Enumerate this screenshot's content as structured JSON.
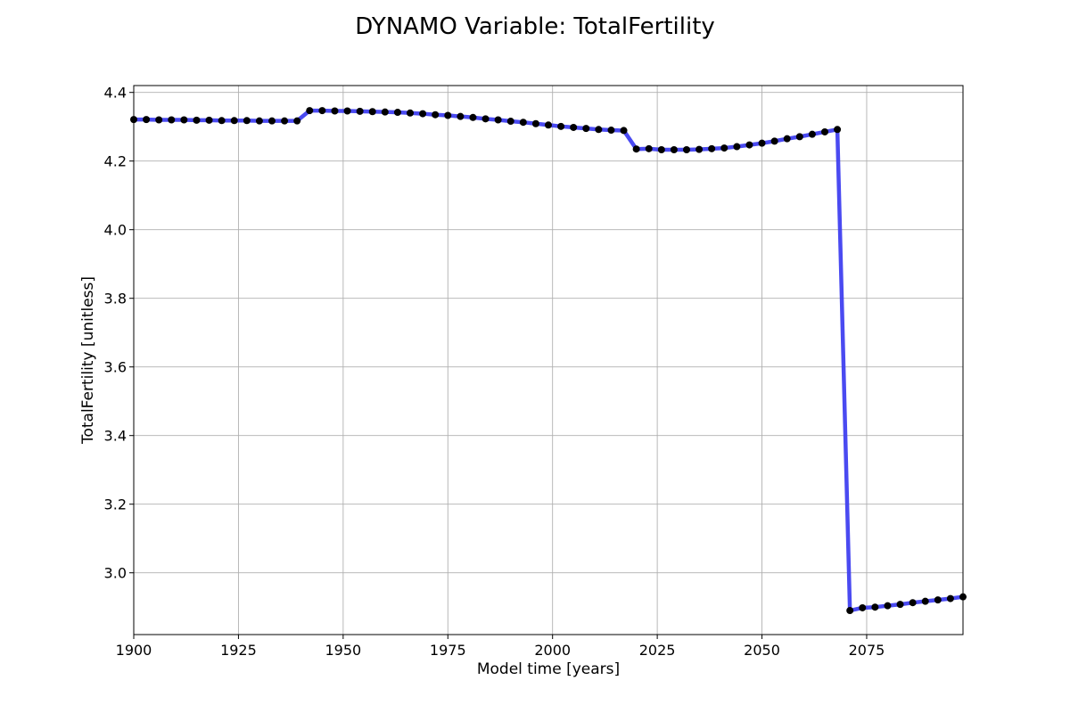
{
  "chart_data": {
    "type": "line",
    "title": "DYNAMO Variable: TotalFertility",
    "xlabel": "Model time [years]",
    "ylabel": "TotalFertility [unitless]",
    "xlim": [
      1900,
      2098
    ],
    "ylim": [
      2.82,
      4.42
    ],
    "xticks": [
      1900,
      1925,
      1950,
      1975,
      2000,
      2025,
      2050,
      2075
    ],
    "yticks": [
      3.0,
      3.2,
      3.4,
      3.6,
      3.8,
      4.0,
      4.2,
      4.4
    ],
    "xtick_labels": [
      "1900",
      "1925",
      "1950",
      "1975",
      "2000",
      "2025",
      "2050",
      "2075"
    ],
    "ytick_labels": [
      "3.0",
      "3.2",
      "3.4",
      "3.6",
      "3.8",
      "4.0",
      "4.2",
      "4.4"
    ],
    "grid": true,
    "line_color": "#3b3bf0",
    "marker_color": "#000000",
    "x": [
      1900,
      1903,
      1906,
      1909,
      1912,
      1915,
      1918,
      1921,
      1924,
      1927,
      1930,
      1933,
      1936,
      1939,
      1942,
      1945,
      1948,
      1951,
      1954,
      1957,
      1960,
      1963,
      1966,
      1969,
      1972,
      1975,
      1978,
      1981,
      1984,
      1987,
      1990,
      1993,
      1996,
      1999,
      2002,
      2005,
      2008,
      2011,
      2014,
      2017,
      2020,
      2023,
      2026,
      2029,
      2032,
      2035,
      2038,
      2041,
      2044,
      2047,
      2050,
      2053,
      2056,
      2059,
      2062,
      2065,
      2068,
      2071,
      2074,
      2077,
      2080,
      2083,
      2086,
      2089,
      2092,
      2095,
      2098
    ],
    "y": [
      4.321,
      4.321,
      4.32,
      4.32,
      4.32,
      4.319,
      4.319,
      4.318,
      4.318,
      4.318,
      4.317,
      4.317,
      4.317,
      4.317,
      4.347,
      4.347,
      4.346,
      4.346,
      4.345,
      4.344,
      4.343,
      4.342,
      4.34,
      4.338,
      4.335,
      4.333,
      4.33,
      4.327,
      4.323,
      4.32,
      4.316,
      4.313,
      4.309,
      4.305,
      4.301,
      4.298,
      4.295,
      4.292,
      4.29,
      4.289,
      4.235,
      4.236,
      4.233,
      4.233,
      4.233,
      4.234,
      4.236,
      4.238,
      4.242,
      4.247,
      4.252,
      4.258,
      4.265,
      4.271,
      4.278,
      4.285,
      4.292,
      2.89,
      2.898,
      2.9,
      2.904,
      2.908,
      2.913,
      2.917,
      2.921,
      2.925,
      2.93
    ]
  }
}
